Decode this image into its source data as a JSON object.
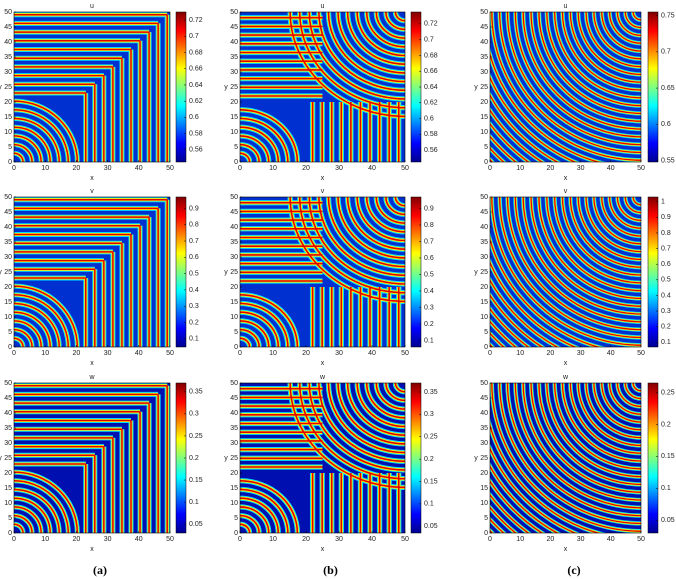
{
  "panels": [
    {
      "title": "u",
      "xlabel": "x",
      "ylabel": "y",
      "xlim": [
        0,
        50
      ],
      "ylim": [
        0,
        50
      ],
      "xticks": [
        0,
        10,
        20,
        30,
        40,
        50
      ],
      "yticks": [
        0,
        5,
        10,
        15,
        20,
        25,
        30,
        35,
        40,
        45,
        50
      ],
      "clim": [
        0.545,
        0.73
      ],
      "colorbar_ticks": [
        0.56,
        0.58,
        0.6,
        0.62,
        0.64,
        0.66,
        0.68,
        0.7,
        0.72
      ]
    },
    {
      "title": "v",
      "xlabel": "x",
      "ylabel": "y",
      "xlim": [
        0,
        50
      ],
      "ylim": [
        0,
        50
      ],
      "xticks": [
        0,
        10,
        20,
        30,
        40,
        50
      ],
      "yticks": [
        0,
        5,
        10,
        15,
        20,
        25,
        30,
        35,
        40,
        45,
        50
      ],
      "clim": [
        0.05,
        0.97
      ],
      "colorbar_ticks": [
        0.1,
        0.2,
        0.3,
        0.4,
        0.5,
        0.6,
        0.7,
        0.8,
        0.9
      ]
    },
    {
      "title": "w",
      "xlabel": "x",
      "ylabel": "y",
      "xlim": [
        0,
        50
      ],
      "ylim": [
        0,
        50
      ],
      "xticks": [
        0,
        10,
        20,
        30,
        40,
        50
      ],
      "yticks": [
        0,
        5,
        10,
        15,
        20,
        25,
        30,
        35,
        40,
        45,
        50
      ],
      "clim": [
        0.03,
        0.37
      ],
      "colorbar_ticks": [
        0.05,
        0.1,
        0.15,
        0.2,
        0.25,
        0.3,
        0.35
      ]
    },
    {
      "title": "u",
      "xlabel": "x",
      "ylabel": "y",
      "xlim": [
        0,
        50
      ],
      "ylim": [
        0,
        50
      ],
      "xticks": [
        0,
        10,
        20,
        30,
        40,
        50
      ],
      "yticks": [
        0,
        5,
        10,
        15,
        20,
        25,
        30,
        35,
        40,
        45,
        50
      ],
      "clim": [
        0.545,
        0.735
      ],
      "colorbar_ticks": [
        0.56,
        0.58,
        0.6,
        0.62,
        0.64,
        0.66,
        0.68,
        0.7,
        0.72
      ]
    },
    {
      "title": "v",
      "xlabel": "x",
      "ylabel": "y",
      "xlim": [
        0,
        50
      ],
      "ylim": [
        0,
        50
      ],
      "xticks": [
        0,
        10,
        20,
        30,
        40,
        50
      ],
      "yticks": [
        0,
        5,
        10,
        15,
        20,
        25,
        30,
        35,
        40,
        45,
        50
      ],
      "clim": [
        0.06,
        0.97
      ],
      "colorbar_ticks": [
        0.1,
        0.2,
        0.3,
        0.4,
        0.5,
        0.6,
        0.7,
        0.8,
        0.9
      ]
    },
    {
      "title": "w",
      "xlabel": "x",
      "ylabel": "y",
      "xlim": [
        0,
        50
      ],
      "ylim": [
        0,
        50
      ],
      "xticks": [
        0,
        10,
        20,
        30,
        40,
        50
      ],
      "yticks": [
        0,
        5,
        10,
        15,
        20,
        25,
        30,
        35,
        40,
        45,
        50
      ],
      "clim": [
        0.035,
        0.37
      ],
      "colorbar_ticks": [
        0.05,
        0.1,
        0.15,
        0.2,
        0.25,
        0.3,
        0.35
      ]
    },
    {
      "title": "u",
      "xlabel": "x",
      "ylabel": "y",
      "xlim": [
        0,
        50
      ],
      "ylim": [
        0,
        50
      ],
      "xticks": [
        0,
        10,
        20,
        30,
        40,
        50
      ],
      "yticks": [
        0,
        5,
        10,
        15,
        20,
        25,
        30,
        35,
        40,
        45,
        50
      ],
      "clim": [
        0.548,
        0.755
      ],
      "colorbar_ticks": [
        0.55,
        0.6,
        0.65,
        0.7,
        0.75
      ]
    },
    {
      "title": "v",
      "xlabel": "x",
      "ylabel": "y",
      "xlim": [
        0,
        50
      ],
      "ylim": [
        0,
        50
      ],
      "xticks": [
        0,
        10,
        20,
        30,
        40,
        50
      ],
      "yticks": [
        0,
        5,
        10,
        15,
        20,
        25,
        30,
        35,
        40,
        45,
        50
      ],
      "clim": [
        0.07,
        1.03
      ],
      "colorbar_ticks": [
        0.1,
        0.2,
        0.3,
        0.4,
        0.5,
        0.6,
        0.7,
        0.8,
        0.9,
        1
      ]
    },
    {
      "title": "w",
      "xlabel": "x",
      "ylabel": "y",
      "xlim": [
        0,
        50
      ],
      "ylim": [
        0,
        50
      ],
      "xticks": [
        0,
        10,
        20,
        30,
        40,
        50
      ],
      "yticks": [
        0,
        5,
        10,
        15,
        20,
        25,
        30,
        35,
        40,
        45,
        50
      ],
      "clim": [
        0.03,
        0.265
      ],
      "colorbar_ticks": [
        0.05,
        0.1,
        0.15,
        0.2,
        0.25
      ]
    }
  ],
  "captions": [
    "(a)",
    "(b)",
    "(c)"
  ]
}
